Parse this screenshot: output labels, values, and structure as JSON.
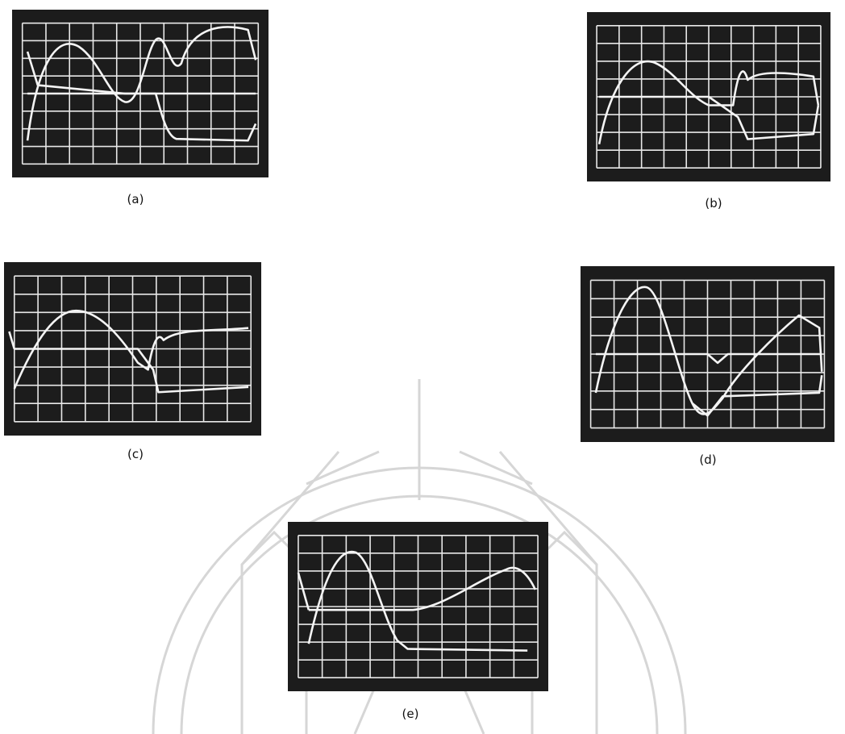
{
  "figures": [
    {
      "label": "(a)"
    },
    {
      "label": "(b)"
    },
    {
      "label": "(c)"
    },
    {
      "label": "(d)"
    },
    {
      "label": "(e)"
    }
  ]
}
